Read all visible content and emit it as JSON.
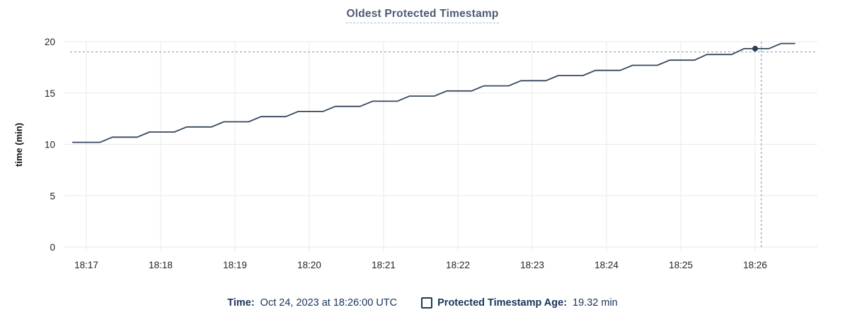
{
  "chart": {
    "title": "Oldest Protected Timestamp"
  },
  "legend": {
    "time_label": "Time:",
    "time_value": "Oct 24, 2023 at 18:26:00 UTC",
    "series_label": "Protected Timestamp Age:",
    "series_value": "19.32 min"
  },
  "chart_data": {
    "type": "line",
    "title": "Oldest Protected Timestamp",
    "xlabel": "",
    "ylabel": "time (min)",
    "ylim": [
      0,
      20
    ],
    "yticks": [
      0,
      5,
      10,
      15,
      20
    ],
    "xticks": [
      "18:17",
      "18:18",
      "18:19",
      "18:20",
      "18:21",
      "18:22",
      "18:23",
      "18:24",
      "18:25",
      "18:26"
    ],
    "x_unit": "seconds_since_18:17:00",
    "grid": true,
    "legend_position": "bottom",
    "series": [
      {
        "name": "Protected Timestamp Age",
        "points": [
          [
            -11,
            10.2
          ],
          [
            11,
            10.2
          ],
          [
            21,
            10.7
          ],
          [
            41,
            10.7
          ],
          [
            51,
            11.2
          ],
          [
            71,
            11.2
          ],
          [
            81,
            11.7
          ],
          [
            101,
            11.7
          ],
          [
            111,
            12.2
          ],
          [
            131,
            12.2
          ],
          [
            141,
            12.7
          ],
          [
            161,
            12.7
          ],
          [
            171,
            13.2
          ],
          [
            191,
            13.2
          ],
          [
            201,
            13.7
          ],
          [
            221,
            13.7
          ],
          [
            231,
            14.2
          ],
          [
            251,
            14.2
          ],
          [
            261,
            14.7
          ],
          [
            281,
            14.7
          ],
          [
            291,
            15.2
          ],
          [
            311,
            15.2
          ],
          [
            321,
            15.7
          ],
          [
            341,
            15.7
          ],
          [
            351,
            16.2
          ],
          [
            371,
            16.2
          ],
          [
            381,
            16.7
          ],
          [
            401,
            16.7
          ],
          [
            411,
            17.2
          ],
          [
            431,
            17.2
          ],
          [
            441,
            17.7
          ],
          [
            461,
            17.7
          ],
          [
            471,
            18.2
          ],
          [
            491,
            18.2
          ],
          [
            501,
            18.75
          ],
          [
            521,
            18.75
          ],
          [
            531,
            19.32
          ],
          [
            551,
            19.32
          ],
          [
            561,
            19.82
          ],
          [
            572,
            19.82
          ]
        ]
      }
    ],
    "highlighted_point": {
      "time": "18:26:00",
      "time_s": 540,
      "value": 19.32
    },
    "crosshair": {
      "time_s": 545,
      "value": 19.0
    },
    "colors": {
      "line": "#36465f",
      "marker": "#2c3d57",
      "grid": "#ededed",
      "crosshair": "#8ea4b4",
      "axis_text": "#242424",
      "title_text": "#4c5b77",
      "legend_text": "#17335a"
    }
  }
}
